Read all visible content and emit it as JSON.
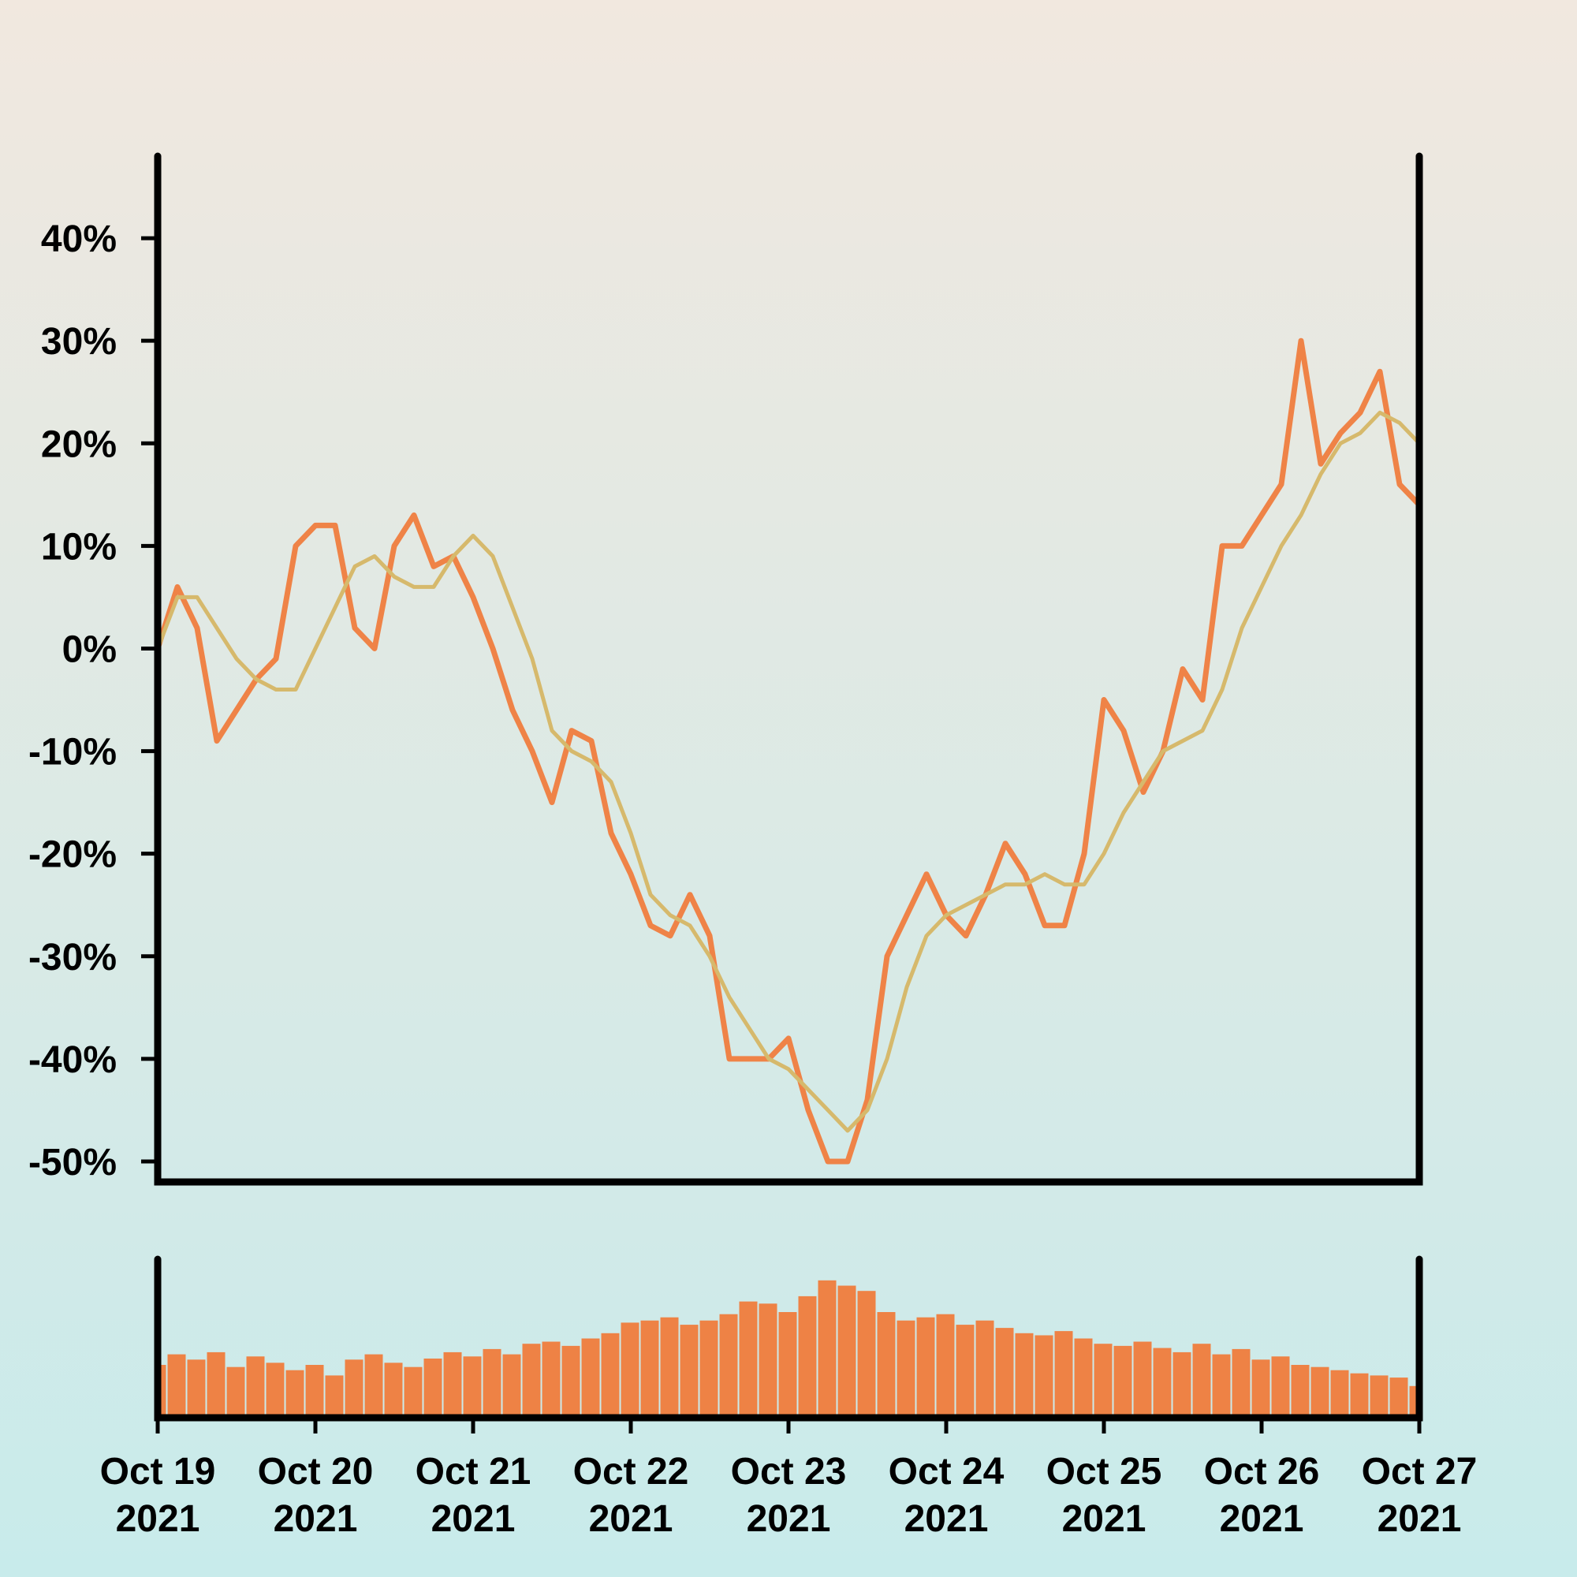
{
  "chart_data": {
    "type": "line",
    "x": [
      "2021-10-19T00:00",
      "2021-10-19T03:00",
      "2021-10-19T06:00",
      "2021-10-19T09:00",
      "2021-10-19T12:00",
      "2021-10-19T15:00",
      "2021-10-19T18:00",
      "2021-10-19T21:00",
      "2021-10-20T00:00",
      "2021-10-20T03:00",
      "2021-10-20T06:00",
      "2021-10-20T09:00",
      "2021-10-20T12:00",
      "2021-10-20T15:00",
      "2021-10-20T18:00",
      "2021-10-20T21:00",
      "2021-10-21T00:00",
      "2021-10-21T03:00",
      "2021-10-21T06:00",
      "2021-10-21T09:00",
      "2021-10-21T12:00",
      "2021-10-21T15:00",
      "2021-10-21T18:00",
      "2021-10-21T21:00",
      "2021-10-22T00:00",
      "2021-10-22T03:00",
      "2021-10-22T06:00",
      "2021-10-22T09:00",
      "2021-10-22T12:00",
      "2021-10-22T15:00",
      "2021-10-22T18:00",
      "2021-10-22T21:00",
      "2021-10-23T00:00",
      "2021-10-23T03:00",
      "2021-10-23T06:00",
      "2021-10-23T09:00",
      "2021-10-23T12:00",
      "2021-10-23T15:00",
      "2021-10-23T18:00",
      "2021-10-23T21:00",
      "2021-10-24T00:00",
      "2021-10-24T03:00",
      "2021-10-24T06:00",
      "2021-10-24T09:00",
      "2021-10-24T12:00",
      "2021-10-24T15:00",
      "2021-10-24T18:00",
      "2021-10-24T21:00",
      "2021-10-25T00:00",
      "2021-10-25T03:00",
      "2021-10-25T06:00",
      "2021-10-25T09:00",
      "2021-10-25T12:00",
      "2021-10-25T15:00",
      "2021-10-25T18:00",
      "2021-10-25T21:00",
      "2021-10-26T00:00",
      "2021-10-26T03:00",
      "2021-10-26T06:00",
      "2021-10-26T09:00",
      "2021-10-26T12:00",
      "2021-10-26T15:00",
      "2021-10-26T18:00",
      "2021-10-26T21:00",
      "2021-10-27T00:00"
    ],
    "series": [
      {
        "color": "#ef8347",
        "values": [
          0,
          6,
          2,
          -9,
          -6,
          -3,
          -1,
          10,
          12,
          12,
          2,
          0,
          10,
          13,
          8,
          9,
          5,
          0,
          -6,
          -10,
          -15,
          -8,
          -9,
          -18,
          -22,
          -27,
          -28,
          -24,
          -28,
          -40,
          -40,
          -40,
          -38,
          -45,
          -50,
          -50,
          -44,
          -30,
          -26,
          -22,
          -26,
          -28,
          -24,
          -19,
          -22,
          -27,
          -27,
          -20,
          -5,
          -8,
          -14,
          -10,
          -2,
          -5,
          10,
          10,
          13,
          16,
          30,
          18,
          21,
          23,
          27,
          16,
          14
        ]
      },
      {
        "color": "#d6b96c",
        "values": [
          0,
          5,
          5,
          2,
          -1,
          -3,
          -4,
          -4,
          0,
          4,
          8,
          9,
          7,
          6,
          6,
          9,
          11,
          9,
          4,
          -1,
          -8,
          -10,
          -11,
          -13,
          -18,
          -24,
          -26,
          -27,
          -30,
          -34,
          -37,
          -40,
          -41,
          -43,
          -45,
          -47,
          -45,
          -40,
          -33,
          -28,
          -26,
          -25,
          -24,
          -23,
          -23,
          -22,
          -23,
          -23,
          -20,
          -16,
          -13,
          -10,
          -9,
          -8,
          -4,
          2,
          6,
          10,
          13,
          17,
          20,
          21,
          23,
          22,
          20
        ]
      }
    ],
    "ylim": [
      -52,
      48
    ],
    "yticks": [
      {
        "value": -50,
        "label": "-50%"
      },
      {
        "value": -40,
        "label": "-40%"
      },
      {
        "value": -30,
        "label": "-30%"
      },
      {
        "value": -20,
        "label": "-20%"
      },
      {
        "value": -10,
        "label": "-10%"
      },
      {
        "value": 0,
        "label": "0%"
      },
      {
        "value": 10,
        "label": "10%"
      },
      {
        "value": 20,
        "label": "20%"
      },
      {
        "value": 30,
        "label": "30%"
      },
      {
        "value": 40,
        "label": "40%"
      }
    ],
    "xlim": [
      "2021-10-19T00:00",
      "2021-10-27T00:00"
    ],
    "xticks": [
      {
        "value": "2021-10-19T00:00",
        "label": [
          "Oct 19",
          "2021"
        ]
      },
      {
        "value": "2021-10-20T00:00",
        "label": [
          "Oct 20",
          "2021"
        ]
      },
      {
        "value": "2021-10-21T00:00",
        "label": [
          "Oct 21",
          "2021"
        ]
      },
      {
        "value": "2021-10-22T00:00",
        "label": [
          "Oct 22",
          "2021"
        ]
      },
      {
        "value": "2021-10-23T00:00",
        "label": [
          "Oct 23",
          "2021"
        ]
      },
      {
        "value": "2021-10-24T00:00",
        "label": [
          "Oct 24",
          "2021"
        ]
      },
      {
        "value": "2021-10-25T00:00",
        "label": [
          "Oct 25",
          "2021"
        ]
      },
      {
        "value": "2021-10-26T00:00",
        "label": [
          "Oct 26",
          "2021"
        ]
      },
      {
        "value": "2021-10-27T00:00",
        "label": [
          "Oct 27",
          "2021"
        ]
      }
    ],
    "volume": {
      "type": "bar",
      "color": "#ee8245",
      "ylim": [
        0,
        150
      ],
      "values": [
        50,
        60,
        55,
        62,
        48,
        58,
        52,
        45,
        50,
        40,
        55,
        60,
        52,
        48,
        56,
        62,
        58,
        65,
        60,
        70,
        72,
        68,
        75,
        80,
        90,
        92,
        95,
        88,
        92,
        98,
        110,
        108,
        100,
        115,
        130,
        125,
        120,
        100,
        92,
        95,
        98,
        88,
        92,
        85,
        80,
        78,
        82,
        75,
        70,
        68,
        72,
        66,
        62,
        70,
        60,
        65,
        55,
        58,
        50,
        48,
        45,
        42,
        40,
        38,
        30
      ]
    }
  }
}
